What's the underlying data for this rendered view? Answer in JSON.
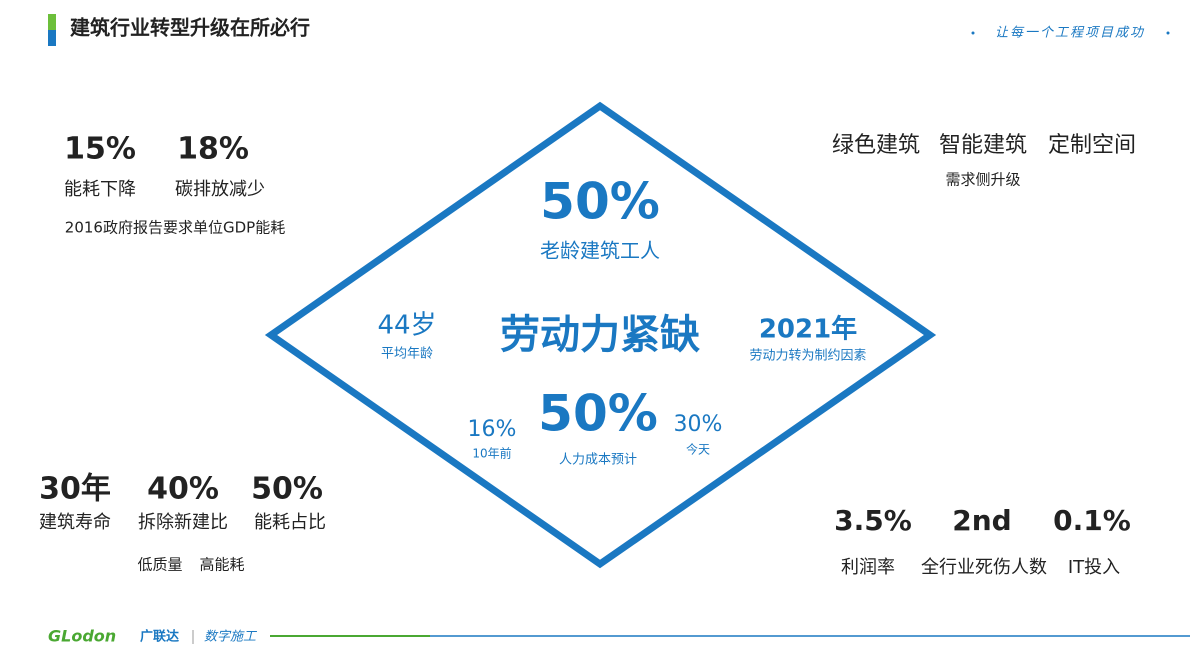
{
  "header": {
    "title": "建筑行业转型升级在所必行",
    "slogan": "让每一个工程项目成功"
  },
  "top_left": {
    "stats": [
      {
        "value": "15%",
        "label": "能耗下降"
      },
      {
        "value": "18%",
        "label": "碳排放减少"
      }
    ],
    "note": "2016政府报告要求单位GDP能耗"
  },
  "top_right": {
    "items": [
      "绿色建筑",
      "智能建筑",
      "定制空间"
    ],
    "note": "需求侧升级"
  },
  "diamond": {
    "title": "劳动力紧缺",
    "top": {
      "value": "50%",
      "label": "老龄建筑工人"
    },
    "left": {
      "value": "44岁",
      "label": "平均年龄"
    },
    "right": {
      "value": "2021年",
      "label": "劳动力转为制约因素"
    },
    "bottom": {
      "value": "50%",
      "label": "人力成本预计"
    },
    "bottom_left": {
      "value": "16%",
      "label": "10年前"
    },
    "bottom_right": {
      "value": "30%",
      "label": "今天"
    }
  },
  "bottom_left": {
    "stats": [
      {
        "value": "30年",
        "label": "建筑寿命"
      },
      {
        "value": "40%",
        "label": "拆除新建比"
      },
      {
        "value": "50%",
        "label": "能耗占比"
      }
    ],
    "notes": [
      "低质量",
      "高能耗"
    ]
  },
  "bottom_right": {
    "stats": [
      {
        "value": "3.5%",
        "label": "利润率"
      },
      {
        "value": "2nd",
        "label": "全行业死伤人数"
      },
      {
        "value": "0.1%",
        "label": "IT投入"
      }
    ]
  },
  "footer": {
    "brand_en": "GLodon",
    "brand_cn": "广联达",
    "tagline": "数字施工"
  }
}
